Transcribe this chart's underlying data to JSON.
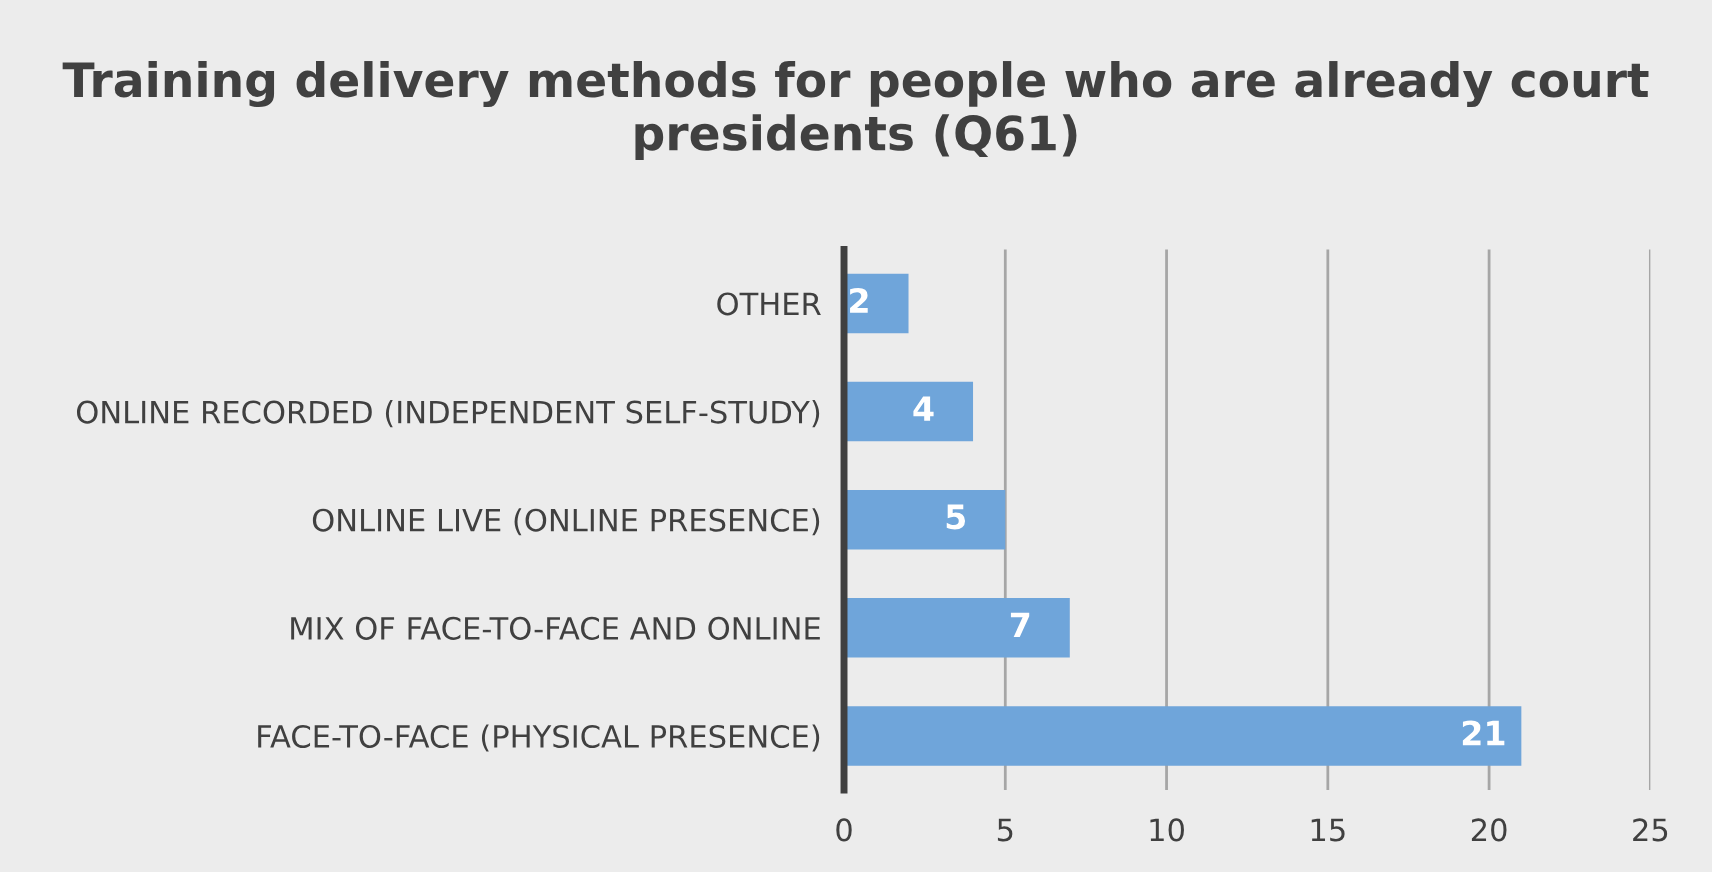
{
  "chart_data": {
    "type": "bar",
    "orientation": "horizontal",
    "title": "Training delivery methods for people who are already court presidents (Q61)",
    "categories": [
      "OTHER",
      "ONLINE RECORDED (INDEPENDENT SELF-STUDY)",
      "ONLINE LIVE (ONLINE PRESENCE)",
      "MIX OF FACE-TO-FACE AND ONLINE",
      "FACE-TO-FACE (PHYSICAL PRESENCE)"
    ],
    "values": [
      2,
      4,
      5,
      7,
      21
    ],
    "color": "#6fa5da",
    "xlim": [
      0,
      25
    ],
    "xticks": [
      0,
      5,
      10,
      15,
      20,
      25
    ],
    "grid": "x",
    "data_labels": true,
    "legend": false
  }
}
